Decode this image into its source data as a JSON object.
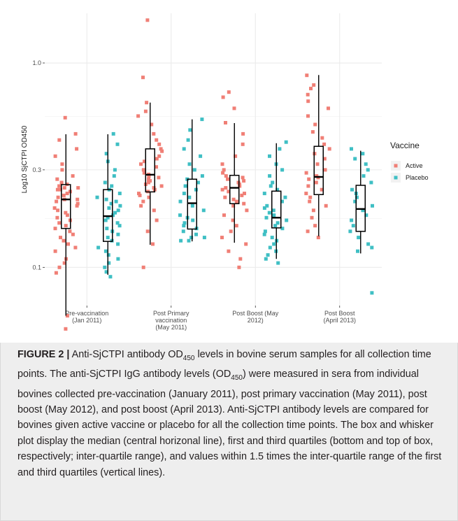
{
  "chart_data": {
    "type": "box+jitter",
    "ylabel": "Log10 SjCTPI OD450",
    "y_scale": "log10",
    "ylim": [
      0.065,
      1.75
    ],
    "y_ticks": [
      {
        "value": 0.1,
        "label": "0.1"
      },
      {
        "value": 0.3,
        "label": "0.3"
      },
      {
        "value": 1.0,
        "label": "1.0"
      }
    ],
    "categories": [
      [
        "Pre-vaccination",
        "(Jan 2011)"
      ],
      [
        "Post Primary",
        "vaccination",
        "(May 2011)"
      ],
      [
        "Post Boost (May",
        "2012)"
      ],
      [
        "Post Boost",
        "(April 2013)"
      ]
    ],
    "legend": {
      "title": "Vaccine",
      "position": "right",
      "items": [
        {
          "name": "Active",
          "color": "#F07F76"
        },
        {
          "name": "Placebo",
          "color": "#3FBFC4"
        }
      ]
    },
    "grid": true,
    "series": [
      {
        "name": "Active",
        "color": "#F07F76",
        "boxes": [
          {
            "whisker_low": 0.058,
            "q1": 0.155,
            "median": 0.215,
            "q3": 0.254,
            "whisker_high": 0.448
          },
          {
            "whisker_low": 0.129,
            "q1": 0.234,
            "median": 0.284,
            "q3": 0.38,
            "whisker_high": 0.64
          },
          {
            "whisker_low": 0.132,
            "q1": 0.205,
            "median": 0.245,
            "q3": 0.282,
            "whisker_high": 0.508
          },
          {
            "whisker_low": 0.142,
            "q1": 0.227,
            "median": 0.277,
            "q3": 0.391,
            "whisker_high": 0.873
          }
        ],
        "points": [
          [
            0.05,
            0.058,
            0.094,
            0.1,
            0.105,
            0.11,
            0.12,
            0.125,
            0.13,
            0.135,
            0.14,
            0.145,
            0.15,
            0.155,
            0.16,
            0.165,
            0.17,
            0.175,
            0.18,
            0.185,
            0.19,
            0.195,
            0.2,
            0.205,
            0.21,
            0.215,
            0.215,
            0.22,
            0.225,
            0.23,
            0.235,
            0.24,
            0.24,
            0.245,
            0.245,
            0.25,
            0.255,
            0.26,
            0.27,
            0.28,
            0.3,
            0.32,
            0.35,
            0.38,
            0.42,
            0.45,
            0.54
          ],
          [
            0.1,
            0.13,
            0.15,
            0.17,
            0.19,
            0.2,
            0.21,
            0.22,
            0.225,
            0.23,
            0.235,
            0.24,
            0.245,
            0.25,
            0.255,
            0.26,
            0.265,
            0.27,
            0.275,
            0.28,
            0.285,
            0.29,
            0.3,
            0.31,
            0.32,
            0.33,
            0.34,
            0.35,
            0.37,
            0.38,
            0.4,
            0.42,
            0.45,
            0.5,
            0.55,
            0.58,
            0.64,
            0.85,
            1.62
          ],
          [
            0.1,
            0.11,
            0.12,
            0.13,
            0.14,
            0.15,
            0.16,
            0.17,
            0.18,
            0.19,
            0.2,
            0.205,
            0.21,
            0.215,
            0.22,
            0.225,
            0.23,
            0.235,
            0.24,
            0.245,
            0.25,
            0.255,
            0.26,
            0.265,
            0.27,
            0.275,
            0.28,
            0.29,
            0.3,
            0.32,
            0.35,
            0.4,
            0.45,
            0.51,
            0.6,
            0.68,
            0.72
          ],
          [
            0.14,
            0.15,
            0.16,
            0.175,
            0.19,
            0.2,
            0.21,
            0.22,
            0.23,
            0.24,
            0.25,
            0.26,
            0.27,
            0.275,
            0.28,
            0.29,
            0.3,
            0.32,
            0.34,
            0.36,
            0.38,
            0.4,
            0.43,
            0.46,
            0.5,
            0.55,
            0.6,
            0.65,
            0.7,
            0.75,
            0.78,
            0.87
          ]
        ]
      },
      {
        "name": "Placebo",
        "color": "#3FBFC4",
        "boxes": [
          {
            "whisker_low": 0.092,
            "q1": 0.134,
            "median": 0.178,
            "q3": 0.24,
            "whisker_high": 0.448
          },
          {
            "whisker_low": 0.134,
            "q1": 0.154,
            "median": 0.206,
            "q3": 0.27,
            "whisker_high": 0.53
          },
          {
            "whisker_low": 0.11,
            "q1": 0.156,
            "median": 0.175,
            "q3": 0.236,
            "whisker_high": 0.405
          },
          {
            "whisker_low": 0.117,
            "q1": 0.15,
            "median": 0.193,
            "q3": 0.252,
            "whisker_high": 0.372
          }
        ],
        "points": [
          [
            0.09,
            0.095,
            0.1,
            0.105,
            0.11,
            0.115,
            0.12,
            0.125,
            0.13,
            0.135,
            0.14,
            0.145,
            0.15,
            0.155,
            0.16,
            0.165,
            0.17,
            0.175,
            0.18,
            0.185,
            0.19,
            0.195,
            0.2,
            0.205,
            0.21,
            0.215,
            0.22,
            0.23,
            0.24,
            0.25,
            0.26,
            0.28,
            0.3,
            0.33,
            0.36,
            0.4,
            0.45
          ],
          [
            0.135,
            0.135,
            0.14,
            0.14,
            0.145,
            0.15,
            0.155,
            0.16,
            0.165,
            0.17,
            0.175,
            0.18,
            0.19,
            0.2,
            0.21,
            0.22,
            0.23,
            0.24,
            0.25,
            0.26,
            0.27,
            0.28,
            0.3,
            0.32,
            0.35,
            0.38,
            0.42,
            0.47,
            0.53
          ],
          [
            0.105,
            0.11,
            0.115,
            0.12,
            0.125,
            0.13,
            0.135,
            0.14,
            0.145,
            0.15,
            0.155,
            0.16,
            0.165,
            0.17,
            0.175,
            0.18,
            0.185,
            0.19,
            0.195,
            0.2,
            0.21,
            0.22,
            0.23,
            0.24,
            0.25,
            0.26,
            0.28,
            0.3,
            0.32,
            0.35,
            0.38,
            0.41
          ],
          [
            0.075,
            0.12,
            0.125,
            0.13,
            0.14,
            0.15,
            0.16,
            0.17,
            0.18,
            0.19,
            0.2,
            0.21,
            0.22,
            0.23,
            0.24,
            0.26,
            0.28,
            0.3,
            0.32,
            0.34,
            0.36,
            0.38
          ]
        ]
      }
    ]
  },
  "caption": {
    "label": "FIGURE 2 |",
    "text": " Anti-SjCTPI antibody OD450 levels in bovine serum samples for all collection time points. The anti-SjCTPI IgG antibody levels (OD450) were measured in sera from individual bovines collected pre-vaccination (January 2011), post primary vaccination (May 2011), post boost (May 2012), and post boost (April 2013). Anti-SjCTPI antibody levels are compared for bovines given active vaccine or placebo for all the collection time points. The box and whisker plot display the median (central horizonal line), first and third quartiles (bottom and top of box, respectively; inter-quartile range), and values within 1.5 times the inter-quartile range of the first and third quartiles (vertical lines)."
  }
}
